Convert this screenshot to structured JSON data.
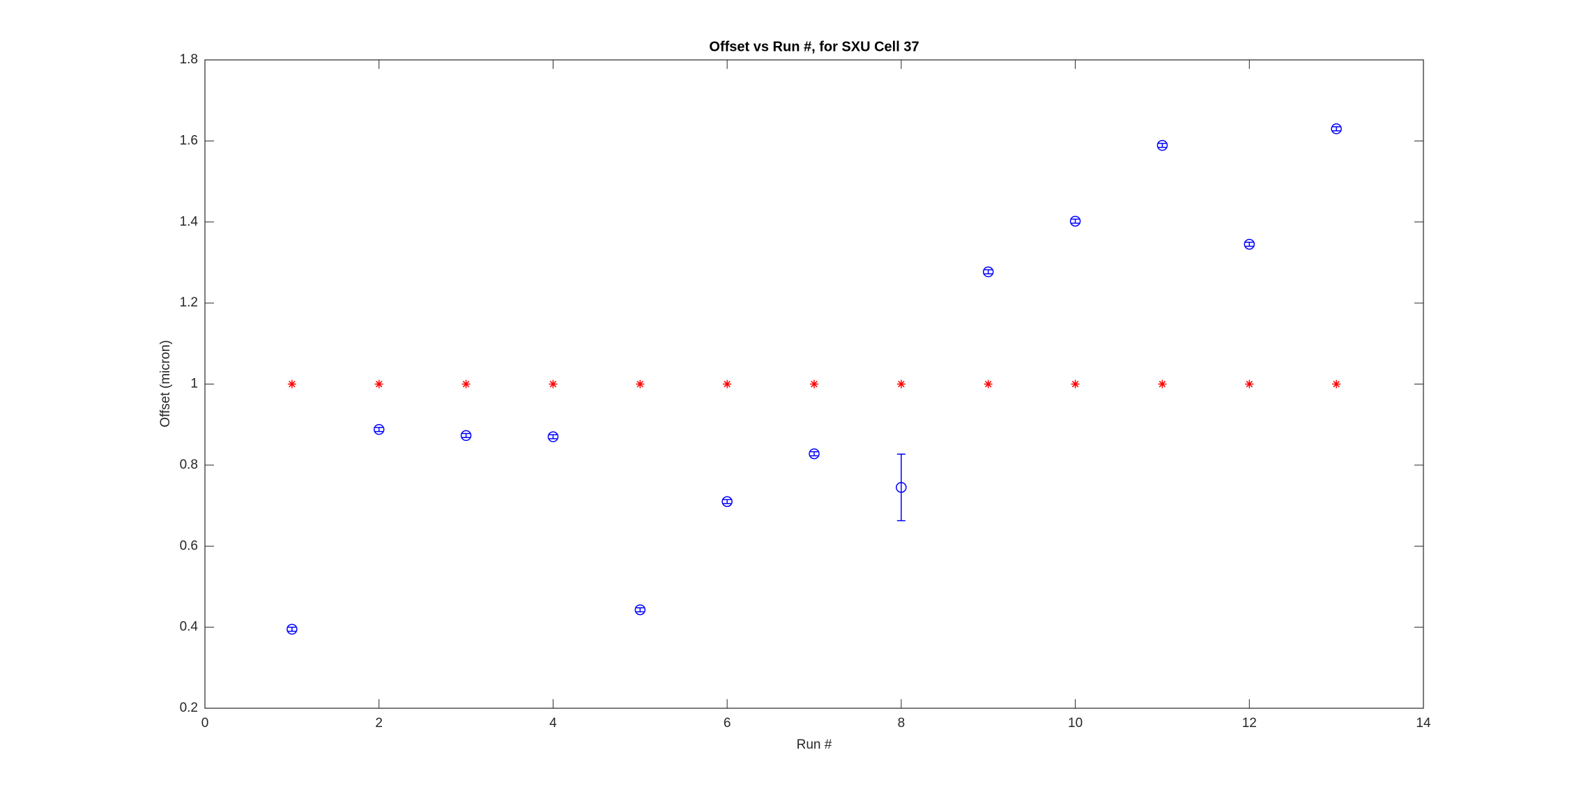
{
  "chart_data": {
    "type": "errorbar-scatter",
    "title": "Offset vs Run #, for SXU Cell 37",
    "xlabel": "Run #",
    "ylabel": "Offset (micron)",
    "x": [
      1,
      2,
      3,
      4,
      5,
      6,
      7,
      8,
      9,
      10,
      11,
      12,
      13
    ],
    "series": [
      {
        "color": "#0000ff",
        "marker": "circle",
        "values": [
          0.395,
          0.888,
          0.873,
          0.87,
          0.443,
          0.71,
          0.828,
          0.745,
          1.277,
          1.402,
          1.589,
          1.345,
          1.63
        ],
        "errors": [
          0.005,
          0.005,
          0.005,
          0.005,
          0.005,
          0.005,
          0.005,
          0.082,
          0.005,
          0.005,
          0.005,
          0.005,
          0.005
        ]
      },
      {
        "color": "#ff0000",
        "marker": "star",
        "values": [
          1,
          1,
          1,
          1,
          1,
          1,
          1,
          1,
          1,
          1,
          1,
          1,
          1
        ]
      }
    ],
    "xlim": [
      0,
      14
    ],
    "xticks": [
      0,
      2,
      4,
      6,
      8,
      10,
      12,
      14
    ],
    "ylim": [
      0.2,
      1.8
    ],
    "yticks": [
      0.2,
      0.4,
      0.6,
      0.8,
      1,
      1.2,
      1.4,
      1.6,
      1.8
    ],
    "grid": false
  }
}
